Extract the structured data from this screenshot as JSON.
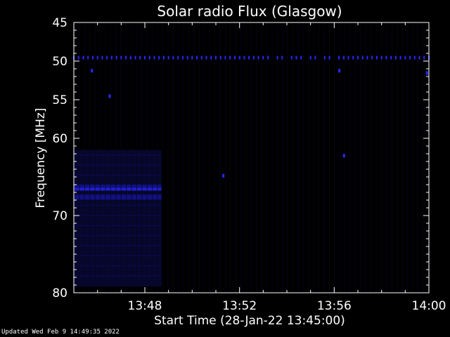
{
  "footer": {
    "updated": "Updated Wed Feb  9 14:49:35 2022"
  },
  "chart_data": {
    "type": "heatmap",
    "title": "Solar radio Flux (Glasgow)",
    "xlabel": "Start Time (28-Jan-22 13:45:00)",
    "ylabel": "Frequency [MHz]",
    "x_unit": "minutes after 13:45:00",
    "xlim": [
      0,
      15
    ],
    "ylim": [
      45,
      80
    ],
    "y_inverted": true,
    "x_ticks": [
      {
        "value": 3,
        "label": "13:48"
      },
      {
        "value": 7,
        "label": "13:52"
      },
      {
        "value": 11,
        "label": "13:56"
      },
      {
        "value": 15,
        "label": "14:00"
      }
    ],
    "y_ticks": [
      {
        "value": 45,
        "label": "45"
      },
      {
        "value": 50,
        "label": "50"
      },
      {
        "value": 55,
        "label": "55"
      },
      {
        "value": 60,
        "label": "60"
      },
      {
        "value": 70,
        "label": "70"
      },
      {
        "value": 80,
        "label": "80"
      }
    ],
    "colors": {
      "background": "#000000",
      "axes": "#ffffff",
      "signal_low": "#07072e",
      "signal_mid": "#12128a",
      "signal_high": "#2828ff"
    },
    "features": {
      "interference_line_freq_mhz": 49.6,
      "early_emission": {
        "time_range": [
          0,
          3.7
        ],
        "freq_range": [
          61.5,
          79
        ],
        "strongest_freq_mhz": 66.6
      },
      "spots": [
        {
          "time": 0.75,
          "freq": 51.2
        },
        {
          "time": 1.5,
          "freq": 54.5
        },
        {
          "time": 11.2,
          "freq": 51.2
        },
        {
          "time": 11.4,
          "freq": 62.2
        },
        {
          "time": 6.3,
          "freq": 64.8
        },
        {
          "time": 14.9,
          "freq": 51.5
        }
      ]
    }
  }
}
